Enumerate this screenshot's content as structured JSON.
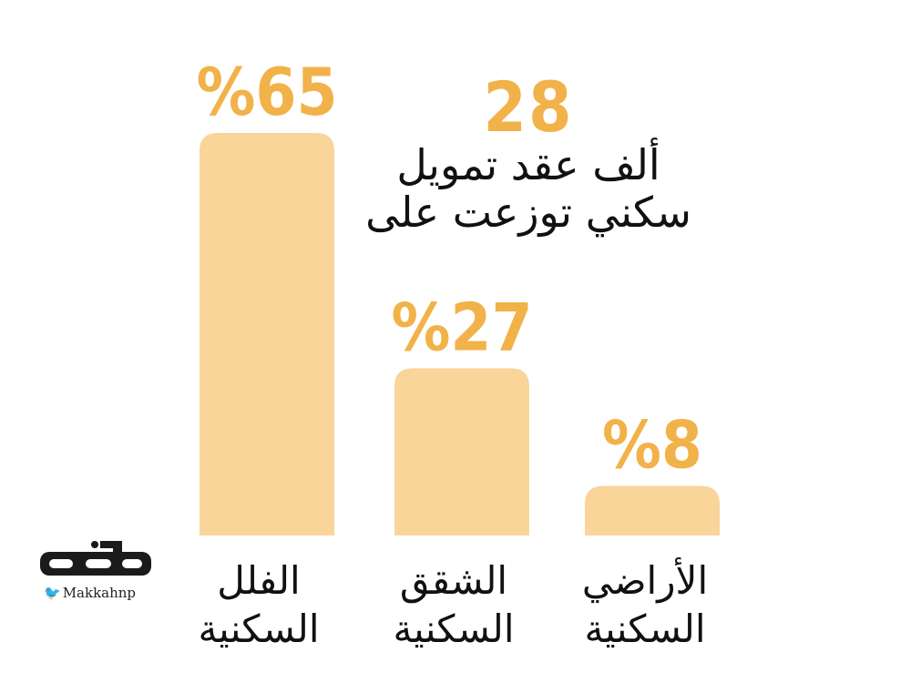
{
  "colors": {
    "bar": "#f9d59a",
    "accent": "#f2b24a",
    "text": "#111111"
  },
  "headline": {
    "number": "28",
    "line1": "ألف عقد تمويل",
    "line2": "سكني توزعت على"
  },
  "chart_data": {
    "type": "bar",
    "categories": [
      "الفلل السكنية",
      "الشقق السكنية",
      "الأراضي السكنية"
    ],
    "category_lines": [
      [
        "الفلل",
        "السكنية"
      ],
      [
        "الشقق",
        "السكنية"
      ],
      [
        "الأراضي",
        "السكنية"
      ]
    ],
    "values": [
      65,
      27,
      8
    ],
    "value_labels": [
      "%65",
      "%27",
      "%8"
    ],
    "unit": "%",
    "ylim": [
      0,
      65
    ],
    "grid": false
  },
  "logo": {
    "name": "مكة",
    "handle": "Makkahnp",
    "icon": "twitter-bird-icon"
  }
}
